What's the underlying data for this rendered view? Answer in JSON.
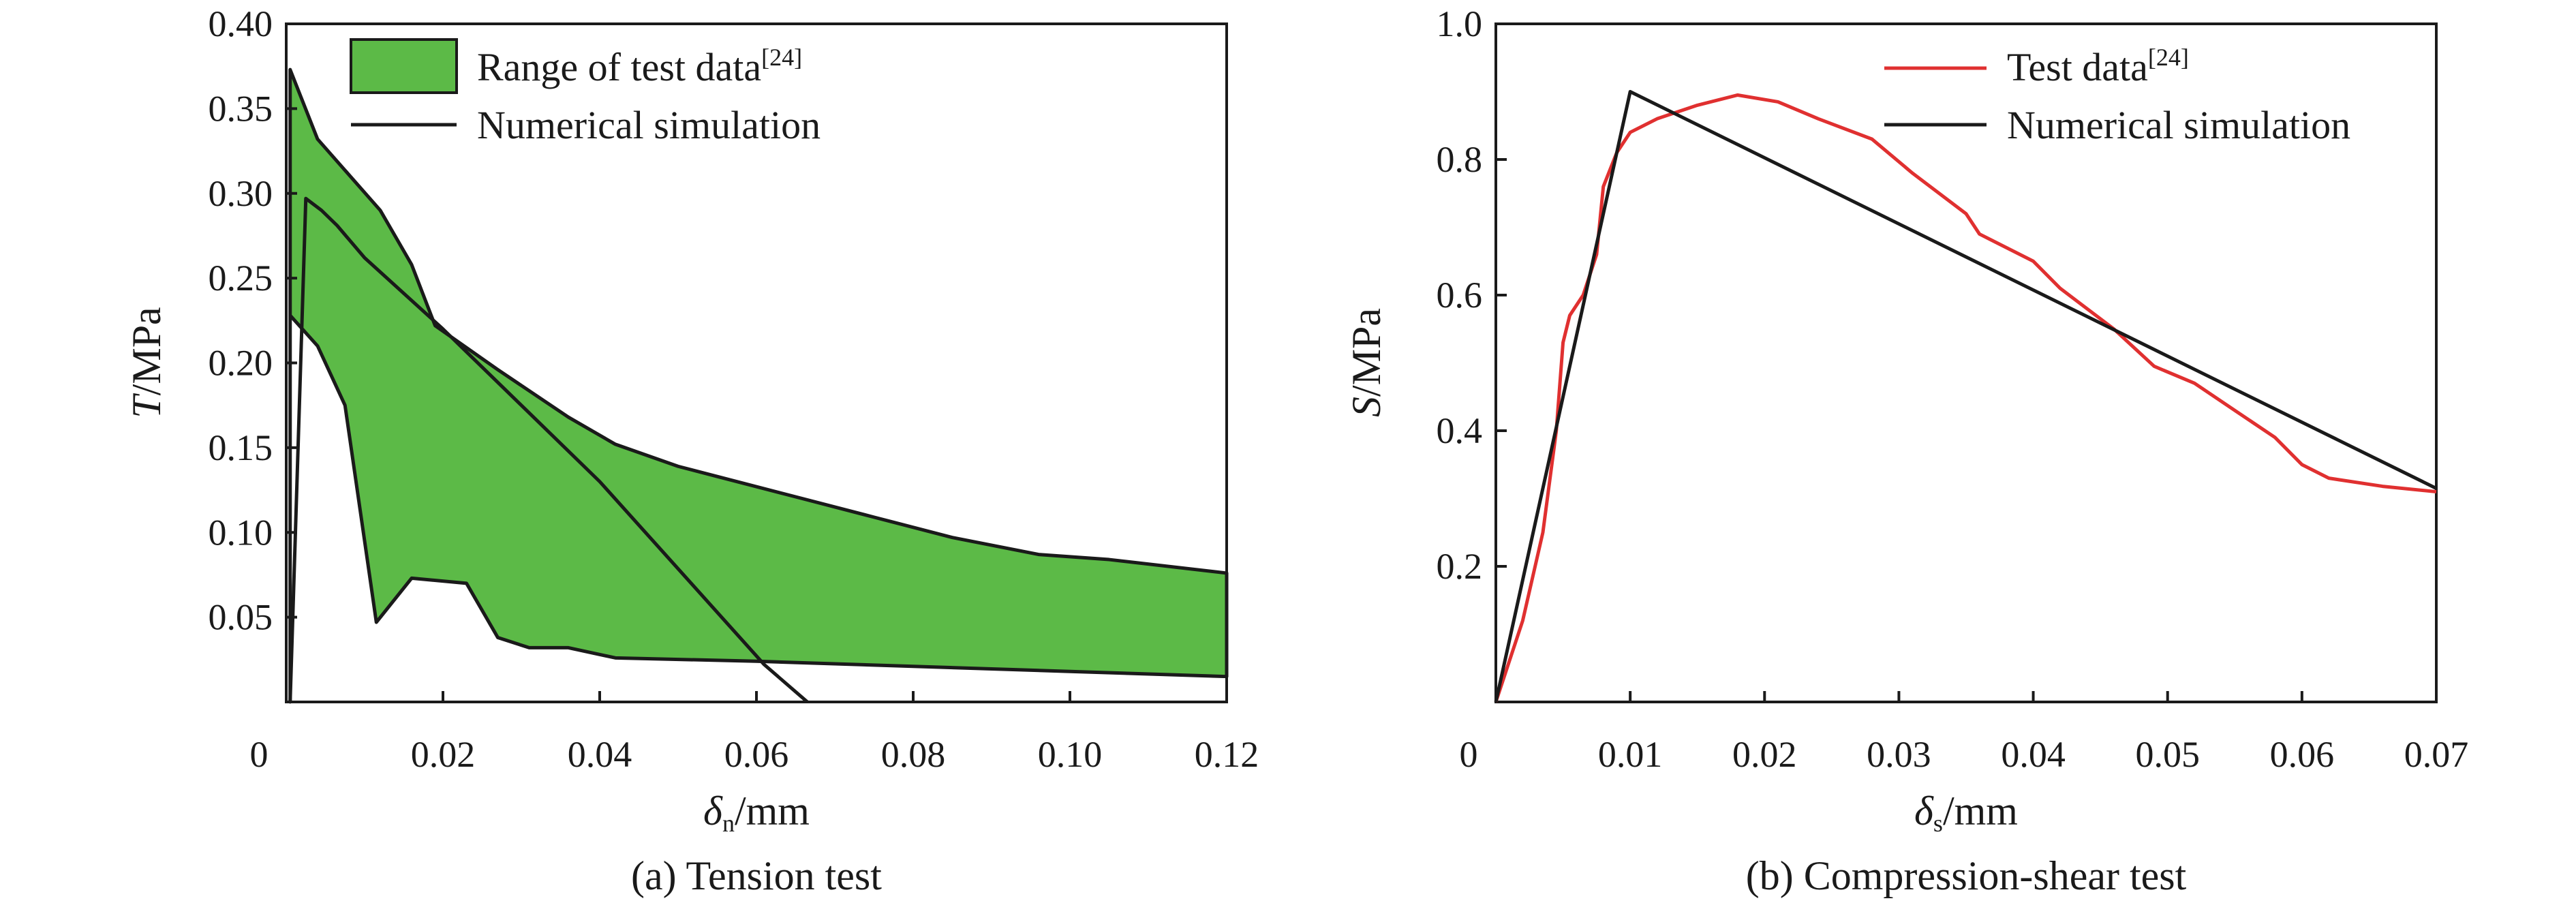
{
  "chart_data": [
    {
      "type": "area",
      "caption": "(a) Tension test",
      "xlabel": {
        "symbol": "δ",
        "sub": "n",
        "unit": "/mm"
      },
      "ylabel": {
        "symbol": "T",
        "unit": "/MPa"
      },
      "xlim": [
        0,
        0.12
      ],
      "ylim": [
        0,
        0.4
      ],
      "x_zero_label": "0",
      "xticks": [
        {
          "v": 0.02,
          "label": "0.02"
        },
        {
          "v": 0.04,
          "label": "0.04"
        },
        {
          "v": 0.06,
          "label": "0.06"
        },
        {
          "v": 0.08,
          "label": "0.08"
        },
        {
          "v": 0.1,
          "label": "0.10"
        },
        {
          "v": 0.12,
          "label": "0.12"
        }
      ],
      "yticks": [
        {
          "v": 0.05,
          "label": "0.05"
        },
        {
          "v": 0.1,
          "label": "0.10"
        },
        {
          "v": 0.15,
          "label": "0.15"
        },
        {
          "v": 0.2,
          "label": "0.20"
        },
        {
          "v": 0.25,
          "label": "0.25"
        },
        {
          "v": 0.3,
          "label": "0.30"
        },
        {
          "v": 0.35,
          "label": "0.35"
        },
        {
          "v": 0.4,
          "label": "0.40"
        }
      ],
      "legend_position": "top-left",
      "colors": {
        "band": "#5cba47",
        "line": "#1a1a1a"
      },
      "series": [
        {
          "name": "Range of test data",
          "name_ref": "[24]",
          "kind": "band",
          "upper": [
            [
              0.0005,
              0.373
            ],
            [
              0.004,
              0.332
            ],
            [
              0.012,
              0.29
            ],
            [
              0.016,
              0.258
            ],
            [
              0.019,
              0.222
            ],
            [
              0.027,
              0.196
            ],
            [
              0.036,
              0.168
            ],
            [
              0.042,
              0.152
            ],
            [
              0.05,
              0.139
            ],
            [
              0.055,
              0.133
            ],
            [
              0.065,
              0.121
            ],
            [
              0.075,
              0.109
            ],
            [
              0.085,
              0.097
            ],
            [
              0.096,
              0.087
            ],
            [
              0.105,
              0.084
            ],
            [
              0.12,
              0.076
            ]
          ],
          "lower": [
            [
              0.0005,
              0.0
            ],
            [
              0.0005,
              0.228
            ],
            [
              0.004,
              0.21
            ],
            [
              0.0075,
              0.175
            ],
            [
              0.0115,
              0.047
            ],
            [
              0.016,
              0.073
            ],
            [
              0.023,
              0.07
            ],
            [
              0.027,
              0.038
            ],
            [
              0.031,
              0.032
            ],
            [
              0.036,
              0.032
            ],
            [
              0.042,
              0.026
            ],
            [
              0.06,
              0.024
            ],
            [
              0.08,
              0.021
            ],
            [
              0.1,
              0.018
            ],
            [
              0.12,
              0.015
            ]
          ]
        },
        {
          "name": "Numerical simulation",
          "kind": "line",
          "points": [
            [
              0.0005,
              0.0
            ],
            [
              0.0025,
              0.297
            ],
            [
              0.0045,
              0.29
            ],
            [
              0.0065,
              0.281
            ],
            [
              0.01,
              0.262
            ],
            [
              0.02,
              0.22
            ],
            [
              0.04,
              0.13
            ],
            [
              0.061,
              0.022
            ],
            [
              0.0665,
              0.0
            ]
          ]
        }
      ]
    },
    {
      "type": "line",
      "caption": "(b) Compression-shear test",
      "xlabel": {
        "symbol": "δ",
        "sub": "s",
        "unit": "/mm"
      },
      "ylabel": {
        "symbol": "S",
        "unit": "/MPa"
      },
      "xlim": [
        0,
        0.07
      ],
      "ylim": [
        0,
        1.0
      ],
      "x_zero_label": "0",
      "xticks": [
        {
          "v": 0.01,
          "label": "0.01"
        },
        {
          "v": 0.02,
          "label": "0.02"
        },
        {
          "v": 0.03,
          "label": "0.03"
        },
        {
          "v": 0.04,
          "label": "0.04"
        },
        {
          "v": 0.05,
          "label": "0.05"
        },
        {
          "v": 0.06,
          "label": "0.06"
        },
        {
          "v": 0.07,
          "label": "0.07"
        }
      ],
      "yticks": [
        {
          "v": 0.2,
          "label": "0.2"
        },
        {
          "v": 0.4,
          "label": "0.4"
        },
        {
          "v": 0.6,
          "label": "0.6"
        },
        {
          "v": 0.8,
          "label": "0.8"
        },
        {
          "v": 1.0,
          "label": "1.0"
        }
      ],
      "legend_position": "top-right",
      "colors": {
        "test": "#e03030",
        "sim": "#1a1a1a"
      },
      "series": [
        {
          "name": "Test data",
          "name_ref": "[24]",
          "kind": "line",
          "points": [
            [
              0,
              0
            ],
            [
              0.002,
              0.12
            ],
            [
              0.0035,
              0.25
            ],
            [
              0.0045,
              0.4
            ],
            [
              0.005,
              0.53
            ],
            [
              0.0055,
              0.57
            ],
            [
              0.0065,
              0.6
            ],
            [
              0.0075,
              0.66
            ],
            [
              0.008,
              0.76
            ],
            [
              0.009,
              0.81
            ],
            [
              0.01,
              0.84
            ],
            [
              0.012,
              0.86
            ],
            [
              0.015,
              0.88
            ],
            [
              0.018,
              0.895
            ],
            [
              0.021,
              0.885
            ],
            [
              0.024,
              0.86
            ],
            [
              0.028,
              0.83
            ],
            [
              0.031,
              0.78
            ],
            [
              0.035,
              0.72
            ],
            [
              0.036,
              0.69
            ],
            [
              0.04,
              0.65
            ],
            [
              0.042,
              0.61
            ],
            [
              0.046,
              0.55
            ],
            [
              0.049,
              0.495
            ],
            [
              0.052,
              0.47
            ],
            [
              0.055,
              0.43
            ],
            [
              0.058,
              0.39
            ],
            [
              0.06,
              0.35
            ],
            [
              0.062,
              0.33
            ],
            [
              0.066,
              0.318
            ],
            [
              0.07,
              0.31
            ]
          ]
        },
        {
          "name": "Numerical simulation",
          "kind": "line",
          "points": [
            [
              0,
              0
            ],
            [
              0.01,
              0.9
            ],
            [
              0.07,
              0.315
            ]
          ]
        }
      ]
    }
  ]
}
